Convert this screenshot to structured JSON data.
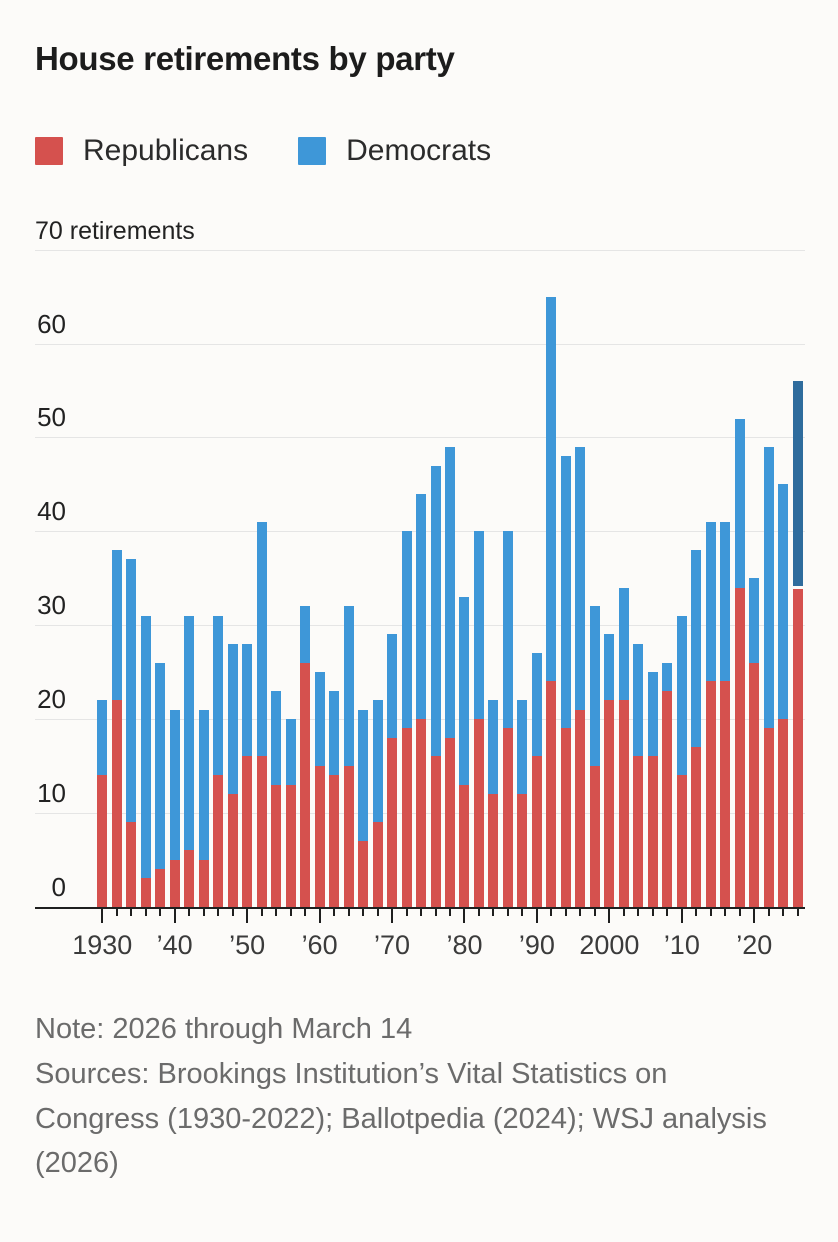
{
  "title": "House retirements by party",
  "legend": {
    "items": [
      {
        "label": "Republicans",
        "color": "#d5514e"
      },
      {
        "label": "Democrats",
        "color": "#3e97d8"
      }
    ]
  },
  "y_axis_top_label": "70 retirements",
  "chart_data": {
    "type": "bar",
    "stacked": true,
    "title": "House retirements by party",
    "ylabel": "retirements",
    "ylim": [
      0,
      70
    ],
    "yticks": [
      0,
      10,
      20,
      30,
      40,
      50,
      60,
      70
    ],
    "grid": "horizontal",
    "legend_position": "top",
    "years": [
      1930,
      1932,
      1934,
      1936,
      1938,
      1940,
      1942,
      1944,
      1946,
      1948,
      1950,
      1952,
      1954,
      1956,
      1958,
      1960,
      1962,
      1964,
      1966,
      1968,
      1970,
      1972,
      1974,
      1976,
      1978,
      1980,
      1982,
      1984,
      1986,
      1988,
      1990,
      1992,
      1994,
      1996,
      1998,
      2000,
      2002,
      2004,
      2006,
      2008,
      2010,
      2012,
      2014,
      2016,
      2018,
      2020,
      2022,
      2024,
      2026
    ],
    "series": [
      {
        "name": "Republicans",
        "values": [
          14,
          22,
          9,
          3,
          4,
          5,
          6,
          5,
          14,
          12,
          16,
          16,
          13,
          13,
          26,
          15,
          14,
          15,
          7,
          9,
          18,
          19,
          20,
          16,
          18,
          13,
          20,
          12,
          19,
          12,
          16,
          24,
          19,
          21,
          15,
          22,
          22,
          16,
          16,
          23,
          14,
          17,
          24,
          24,
          34,
          26,
          19,
          20,
          34
        ]
      },
      {
        "name": "Democrats",
        "values": [
          8,
          16,
          28,
          28,
          22,
          16,
          25,
          16,
          17,
          16,
          12,
          25,
          10,
          7,
          6,
          10,
          9,
          17,
          14,
          13,
          11,
          21,
          24,
          31,
          31,
          20,
          20,
          10,
          21,
          10,
          11,
          41,
          29,
          28,
          17,
          7,
          12,
          12,
          9,
          3,
          17,
          21,
          17,
          17,
          18,
          9,
          30,
          25,
          22
        ]
      }
    ],
    "colors": {
      "republicans": "#d5514e",
      "democrats": "#3e97d8",
      "democrats_2026_highlight": "#2f6c9d",
      "gridline": "#e5e5e5",
      "baseline": "#1f1f1f"
    },
    "highlight_year": 2026,
    "xtick_labels": [
      {
        "year": 1930,
        "label": "1930"
      },
      {
        "year": 1940,
        "label": "’40"
      },
      {
        "year": 1950,
        "label": "’50"
      },
      {
        "year": 1960,
        "label": "’60"
      },
      {
        "year": 1970,
        "label": "’70"
      },
      {
        "year": 1980,
        "label": "’80"
      },
      {
        "year": 1990,
        "label": "’90"
      },
      {
        "year": 2000,
        "label": "2000"
      },
      {
        "year": 2010,
        "label": "’10"
      },
      {
        "year": 2020,
        "label": "’20"
      }
    ]
  },
  "footer": {
    "note": "Note: 2026 through March 14",
    "sources": "Sources: Brookings Institution’s Vital Statistics on Congress (1930-2022); Ballotpedia (2024); WSJ analysis (2026)"
  }
}
